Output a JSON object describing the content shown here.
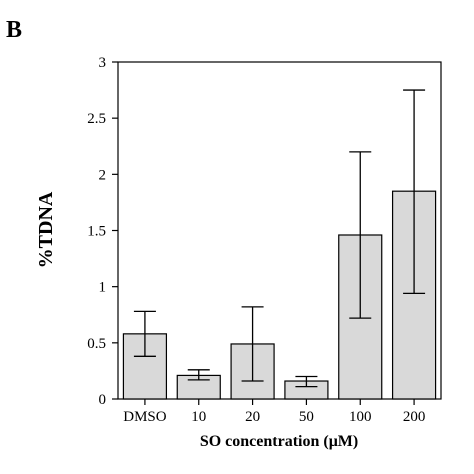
{
  "panel_label": "B",
  "chart_data": {
    "type": "bar",
    "categories": [
      "DMSO",
      "10",
      "20",
      "50",
      "100",
      "200"
    ],
    "values": [
      0.58,
      0.21,
      0.49,
      0.16,
      1.46,
      1.85
    ],
    "error_bars": {
      "upper": [
        0.78,
        0.26,
        0.82,
        0.2,
        2.2,
        2.75
      ],
      "lower": [
        0.38,
        0.17,
        0.16,
        0.11,
        0.72,
        0.94
      ]
    },
    "xlabel": "SO concentration (μM)",
    "ylabel": "%TDNA",
    "ylim": [
      0,
      3
    ],
    "yticks": [
      0,
      0.5,
      1,
      1.5,
      2,
      2.5,
      3
    ],
    "ytick_labels": [
      "0",
      "0.5",
      "1",
      "1.5",
      "2",
      "2.5",
      "3"
    ],
    "grid": false,
    "bar_color": "#d9d9d9",
    "edge_color": "#000000"
  }
}
